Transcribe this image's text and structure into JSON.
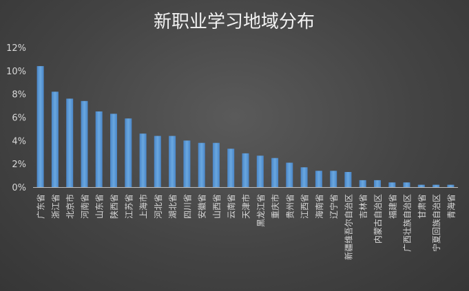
{
  "chart_data": {
    "type": "bar",
    "title": "新职业学习地域分布",
    "xlabel": "",
    "ylabel": "",
    "ylim": [
      0,
      12
    ],
    "yticks": [
      "0%",
      "2%",
      "4%",
      "6%",
      "8%",
      "10%",
      "12%"
    ],
    "grid": false,
    "legend": "none",
    "categories": [
      "广东省",
      "浙江省",
      "北京市",
      "河南省",
      "山东省",
      "陕西省",
      "江苏省",
      "上海市",
      "河北省",
      "湖北省",
      "四川省",
      "安徽省",
      "山西省",
      "云南省",
      "天津市",
      "黑龙江省",
      "重庆市",
      "贵州省",
      "江西省",
      "海南省",
      "辽宁省",
      "新疆维吾尔自治区",
      "吉林省",
      "内蒙古自治区",
      "福建省",
      "广西壮族自治区",
      "甘肃省",
      "宁夏回族自治区",
      "青海省"
    ],
    "values": [
      10.4,
      8.2,
      7.6,
      7.4,
      6.5,
      6.3,
      5.9,
      4.6,
      4.4,
      4.4,
      4.0,
      3.8,
      3.8,
      3.3,
      2.9,
      2.7,
      2.5,
      2.1,
      1.7,
      1.4,
      1.4,
      1.3,
      0.6,
      0.6,
      0.4,
      0.4,
      0.2,
      0.2,
      0.2
    ],
    "colors": {
      "bar": "#5b9bd5",
      "text": "#d9d9d9",
      "axis": "#bfbfbf"
    }
  }
}
